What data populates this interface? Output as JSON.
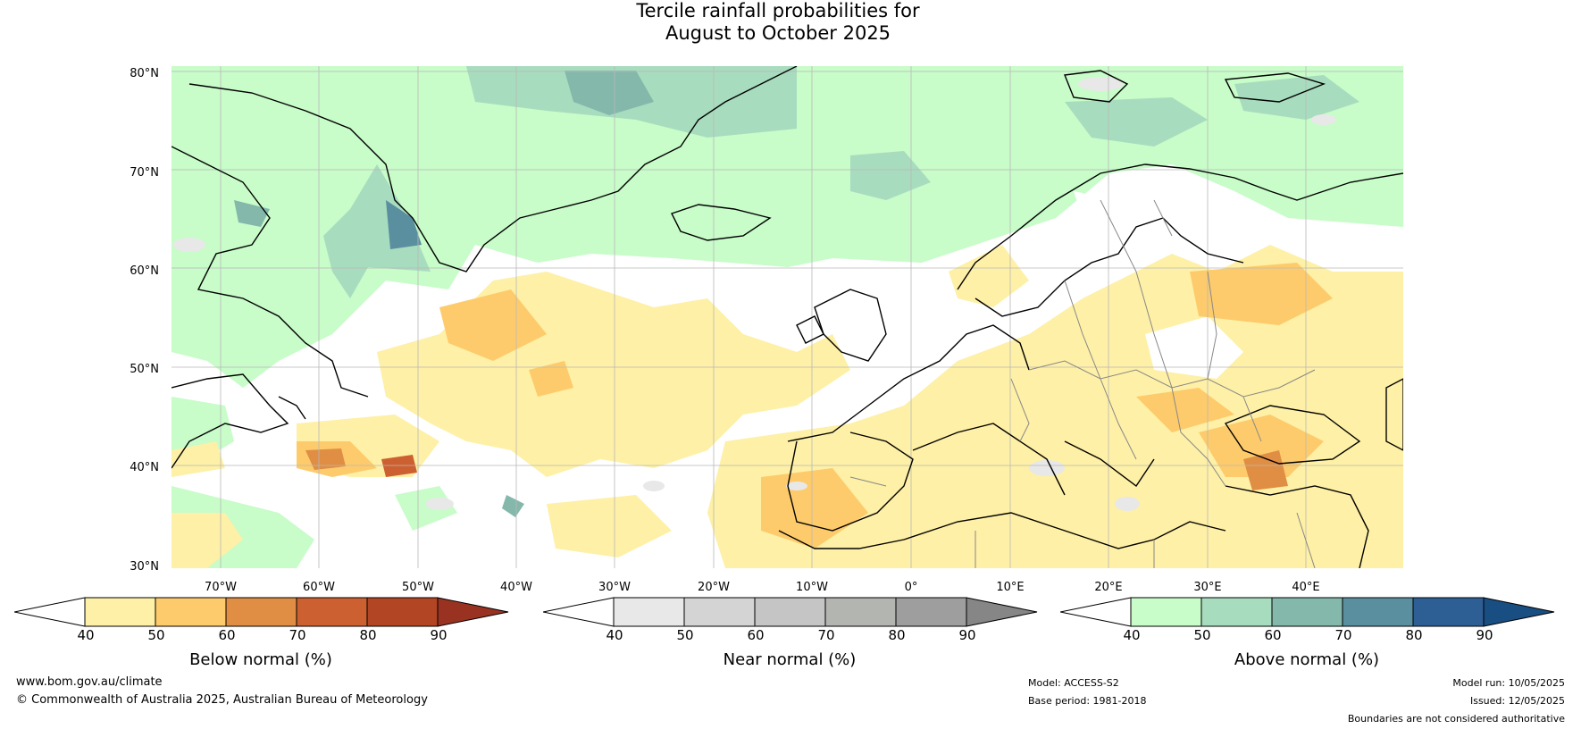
{
  "title": {
    "line1": "Tercile rainfall probabilities for",
    "line2": "August to October 2025"
  },
  "map": {
    "lat_labels": [
      "80°N",
      "70°N",
      "60°N",
      "50°N",
      "40°N",
      "30°N"
    ],
    "lon_labels": [
      "70°W",
      "60°W",
      "50°W",
      "40°W",
      "30°W",
      "20°W",
      "10°W",
      "0°",
      "10°E",
      "20°E",
      "30°E",
      "40°E"
    ],
    "lat_range": [
      30,
      81
    ],
    "lon_range": [
      -75,
      50
    ]
  },
  "colorbars": {
    "below": {
      "title": "Below normal (%)",
      "ticks": [
        "40",
        "50",
        "60",
        "70",
        "80",
        "90"
      ],
      "colors": [
        "#fef0a6",
        "#fdcb6b",
        "#df8e43",
        "#cd6030",
        "#b24524"
      ],
      "extend_color": "#9a3222"
    },
    "near": {
      "title": "Near normal (%)",
      "ticks": [
        "40",
        "50",
        "60",
        "70",
        "80",
        "90"
      ],
      "colors": [
        "#e8e8e8",
        "#d4d4d4",
        "#c5c5c5",
        "#b3b5b1",
        "#9e9e9e"
      ],
      "extend_color": "#868686"
    },
    "above": {
      "title": "Above normal (%)",
      "ticks": [
        "40",
        "50",
        "60",
        "70",
        "80",
        "90"
      ],
      "colors": [
        "#c8fcc9",
        "#a8dcbe",
        "#84b8ab",
        "#5a8fa0",
        "#2e5f94"
      ],
      "extend_color": "#194e83"
    }
  },
  "footer": {
    "website": "www.bom.gov.au/climate",
    "copyright": "© Commonwealth of Australia 2025, Australian Bureau of Meteorology",
    "model": "Model: ACCESS-S2",
    "base_period": "Base period: 1981-2018",
    "model_run": "Model run: 10/05/2025",
    "issued": "Issued: 12/05/2025",
    "disclaimer": "Boundaries are not considered authoritative"
  }
}
